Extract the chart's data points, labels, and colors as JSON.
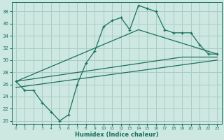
{
  "xlabel": "Humidex (Indice chaleur)",
  "bg_color": "#cce8e0",
  "grid_color": "#aaccc4",
  "line_color": "#1a7060",
  "xlim": [
    -0.5,
    23.5
  ],
  "ylim": [
    19.5,
    39.5
  ],
  "xticks": [
    0,
    1,
    2,
    3,
    4,
    5,
    6,
    7,
    8,
    9,
    10,
    11,
    12,
    13,
    14,
    15,
    16,
    17,
    18,
    19,
    20,
    21,
    22,
    23
  ],
  "yticks": [
    20,
    22,
    24,
    26,
    28,
    30,
    32,
    34,
    36,
    38
  ],
  "line1_x": [
    0,
    1,
    2,
    3,
    4,
    5,
    6,
    7,
    8,
    9,
    10,
    11,
    12,
    13,
    14,
    15,
    16,
    17,
    18,
    19,
    20,
    21,
    22,
    23
  ],
  "line1_y": [
    26.5,
    25.0,
    25.0,
    23.0,
    21.5,
    20.0,
    21.0,
    26.0,
    29.5,
    31.5,
    35.5,
    36.5,
    37.0,
    35.0,
    39.0,
    38.5,
    38.0,
    35.0,
    34.5,
    34.5,
    34.5,
    32.5,
    31.0,
    31.0
  ],
  "line2_x": [
    0,
    14,
    23
  ],
  "line2_y": [
    26.5,
    35.0,
    31.0
  ],
  "line3_x": [
    0,
    19,
    23
  ],
  "line3_y": [
    26.5,
    30.5,
    30.5
  ],
  "line4_x": [
    0,
    23
  ],
  "line4_y": [
    25.5,
    30.0
  ]
}
